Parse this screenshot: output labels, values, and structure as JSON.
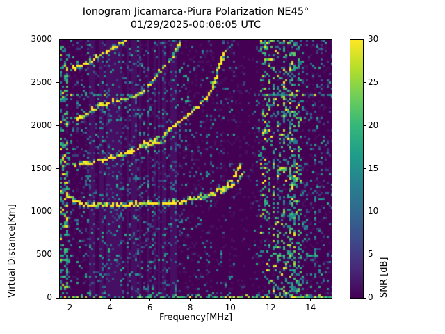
{
  "chart_data": {
    "type": "heatmap",
    "title": "Ionogram Jicamarca-Piura Polarization NE45°",
    "subtitle": "01/29/2025-00:08:05 UTC",
    "xlabel": "Frequency[MHz]",
    "ylabel": "Virtual Distance[Km]",
    "xlim": [
      1.5,
      15.05
    ],
    "ylim": [
      0,
      3000
    ],
    "xticks": [
      2,
      4,
      6,
      8,
      10,
      12,
      14
    ],
    "yticks": [
      0,
      500,
      1000,
      1500,
      2000,
      2500,
      3000
    ],
    "grid": false,
    "background_color": "#440154",
    "colorbar": {
      "label": "SNR [dB]",
      "lim": [
        0,
        30
      ],
      "ticks": [
        0,
        5,
        10,
        15,
        20,
        25,
        30
      ],
      "colormap": "viridis",
      "stops": [
        "#440154",
        "#482878",
        "#3e4a89",
        "#31688e",
        "#26828e",
        "#1f9e89",
        "#35b779",
        "#6ece58",
        "#b5de2b",
        "#fde725"
      ]
    },
    "traces": [
      {
        "name": "F-trace-1hop-O",
        "intensity": 0.95,
        "points": [
          [
            1.82,
            1230
          ],
          [
            2.0,
            1172
          ],
          [
            2.2,
            1128
          ],
          [
            2.5,
            1098
          ],
          [
            3.0,
            1082
          ],
          [
            4.0,
            1078
          ],
          [
            5.0,
            1082
          ],
          [
            6.0,
            1092
          ],
          [
            7.0,
            1104
          ],
          [
            7.8,
            1124
          ],
          [
            8.4,
            1154
          ],
          [
            9.0,
            1202
          ],
          [
            9.5,
            1260
          ],
          [
            9.9,
            1332
          ],
          [
            10.2,
            1408
          ],
          [
            10.42,
            1482
          ],
          [
            10.52,
            1548
          ]
        ]
      },
      {
        "name": "F-trace-1hop-X",
        "intensity": 0.7,
        "points": [
          [
            8.6,
            1150
          ],
          [
            9.2,
            1192
          ],
          [
            9.7,
            1246
          ],
          [
            10.1,
            1308
          ],
          [
            10.4,
            1380
          ],
          [
            10.6,
            1442
          ],
          [
            10.72,
            1484
          ]
        ]
      },
      {
        "name": "F-trace-2hop-lower",
        "intensity": 0.9,
        "points": [
          [
            2.2,
            1552
          ],
          [
            2.7,
            1562
          ],
          [
            3.2,
            1578
          ],
          [
            3.8,
            1606
          ],
          [
            4.4,
            1642
          ],
          [
            5.0,
            1690
          ],
          [
            5.6,
            1742
          ],
          [
            6.1,
            1778
          ],
          [
            6.7,
            1806
          ]
        ]
      },
      {
        "name": "F-trace-2hop-upper",
        "intensity": 0.8,
        "points": [
          [
            5.7,
            1782
          ],
          [
            6.2,
            1834
          ],
          [
            6.6,
            1890
          ],
          [
            7.1,
            1976
          ],
          [
            7.6,
            2062
          ],
          [
            8.0,
            2150
          ],
          [
            8.5,
            2252
          ],
          [
            8.9,
            2352
          ],
          [
            9.1,
            2422
          ],
          [
            9.25,
            2520
          ],
          [
            9.45,
            2680
          ],
          [
            9.6,
            2772
          ],
          [
            9.75,
            2852
          ]
        ]
      },
      {
        "name": "trace-upper-mid",
        "intensity": 0.65,
        "points": [
          [
            2.35,
            2072
          ],
          [
            2.7,
            2122
          ],
          [
            3.1,
            2178
          ],
          [
            3.6,
            2236
          ],
          [
            4.2,
            2282
          ],
          [
            4.8,
            2316
          ],
          [
            5.2,
            2340
          ],
          [
            5.6,
            2386
          ],
          [
            6.0,
            2480
          ],
          [
            6.3,
            2580
          ],
          [
            6.7,
            2682
          ],
          [
            7.05,
            2770
          ],
          [
            7.3,
            2862
          ],
          [
            7.5,
            2962
          ]
        ]
      },
      {
        "name": "trace-top",
        "intensity": 0.85,
        "points": [
          [
            2.1,
            2646
          ],
          [
            2.5,
            2692
          ],
          [
            2.9,
            2738
          ],
          [
            3.4,
            2796
          ],
          [
            3.8,
            2852
          ],
          [
            4.3,
            2922
          ],
          [
            4.7,
            2982
          ],
          [
            4.85,
            3005
          ]
        ]
      }
    ],
    "noise_bands": [
      {
        "f": [
          1.5,
          1.95
        ],
        "density": 0.3,
        "palette": "bright"
      },
      {
        "f": [
          1.95,
          2.6
        ],
        "density": 0.1,
        "palette": "mid"
      },
      {
        "f": [
          2.6,
          7.6
        ],
        "density": 0.13,
        "palette": "mid",
        "bg": "#470f63"
      },
      {
        "f": [
          7.6,
          9.6
        ],
        "density": 0.08,
        "palette": "mid"
      },
      {
        "f": [
          9.6,
          10.35
        ],
        "density": 0.05,
        "palette": "mid"
      },
      {
        "f": [
          10.35,
          11.05
        ],
        "density": 0.015,
        "palette": "dark"
      },
      {
        "f": [
          11.05,
          11.45
        ],
        "density": 0.06,
        "palette": "mid"
      },
      {
        "f": [
          11.45,
          13.55
        ],
        "density": 0.28,
        "palette": "bright"
      },
      {
        "f": [
          13.55,
          15.06
        ],
        "density": 0.12,
        "palette": "mid"
      }
    ],
    "palettes": {
      "mid": [
        "#3b3f7e",
        "#355f8d",
        "#2a788e",
        "#21918c",
        "#28ae80"
      ],
      "bright": [
        "#2a788e",
        "#21918c",
        "#28ae80",
        "#3dbc74",
        "#5ec962",
        "#addc30",
        "#fde725"
      ],
      "dark": [
        "#3b3f7e"
      ]
    },
    "rfi_lines": [
      {
        "km": 2352,
        "spans": [
          [
            1.5,
            5.7
          ],
          [
            11.6,
            15.05
          ]
        ],
        "strength": 0.6
      },
      {
        "km": 898,
        "spans": [
          [
            1.5,
            2.7
          ]
        ],
        "strength": 0.35
      },
      {
        "km": 1232,
        "spans": [
          [
            1.5,
            2.3
          ]
        ],
        "strength": 0.3
      },
      {
        "km": 488,
        "spans": [
          [
            1.5,
            2.15
          ],
          [
            13.2,
            14.7
          ]
        ],
        "strength": 0.3
      }
    ],
    "bottom_band": {
      "km_max": 30,
      "density": 0.55
    }
  }
}
